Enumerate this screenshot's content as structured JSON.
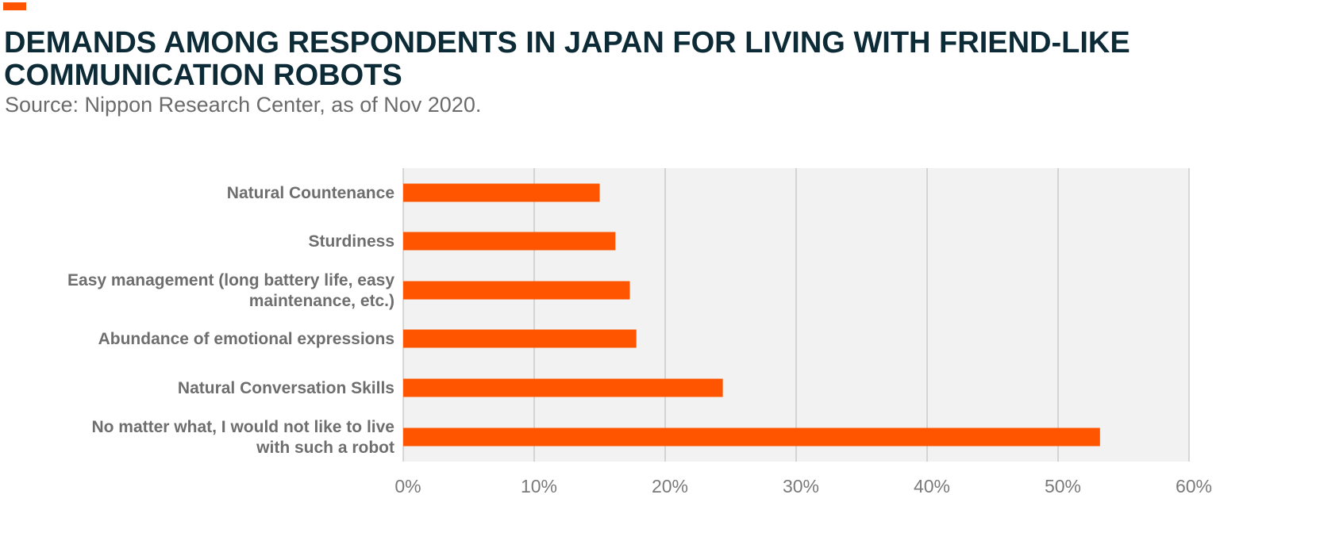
{
  "header": {
    "title": "DEMANDS AMONG RESPONDENTS IN JAPAN FOR LIVING WITH FRIEND-LIKE COMMUNICATION ROBOTS",
    "subtitle": "Source: Nippon Research Center, as of Nov 2020."
  },
  "colors": {
    "accent": "#ff5500",
    "title": "#0d2b36",
    "plot_background": "#f2f2f2",
    "gridline": "#b5b5b5",
    "label": "#6e6e6e"
  },
  "chart_data": {
    "type": "bar",
    "orientation": "horizontal",
    "categories": [
      [
        "Natural Countenance"
      ],
      [
        "Sturdiness"
      ],
      [
        "Easy management (long battery life, easy",
        "maintenance, etc.)"
      ],
      [
        "Abundance of emotional expressions"
      ],
      [
        "Natural Conversation Skills"
      ],
      [
        "No matter what, I would not like to live",
        "with such a robot"
      ]
    ],
    "values": [
      15.0,
      16.2,
      17.3,
      17.8,
      24.4,
      53.2
    ],
    "xlim": [
      0,
      60
    ],
    "xticks": [
      0,
      10,
      20,
      30,
      40,
      50,
      60
    ],
    "xtick_labels": [
      "0%",
      "10%",
      "20%",
      "30%",
      "40%",
      "50%",
      "60%"
    ],
    "xlabel": "",
    "ylabel": "",
    "grid": "vertical",
    "legend": "none"
  }
}
